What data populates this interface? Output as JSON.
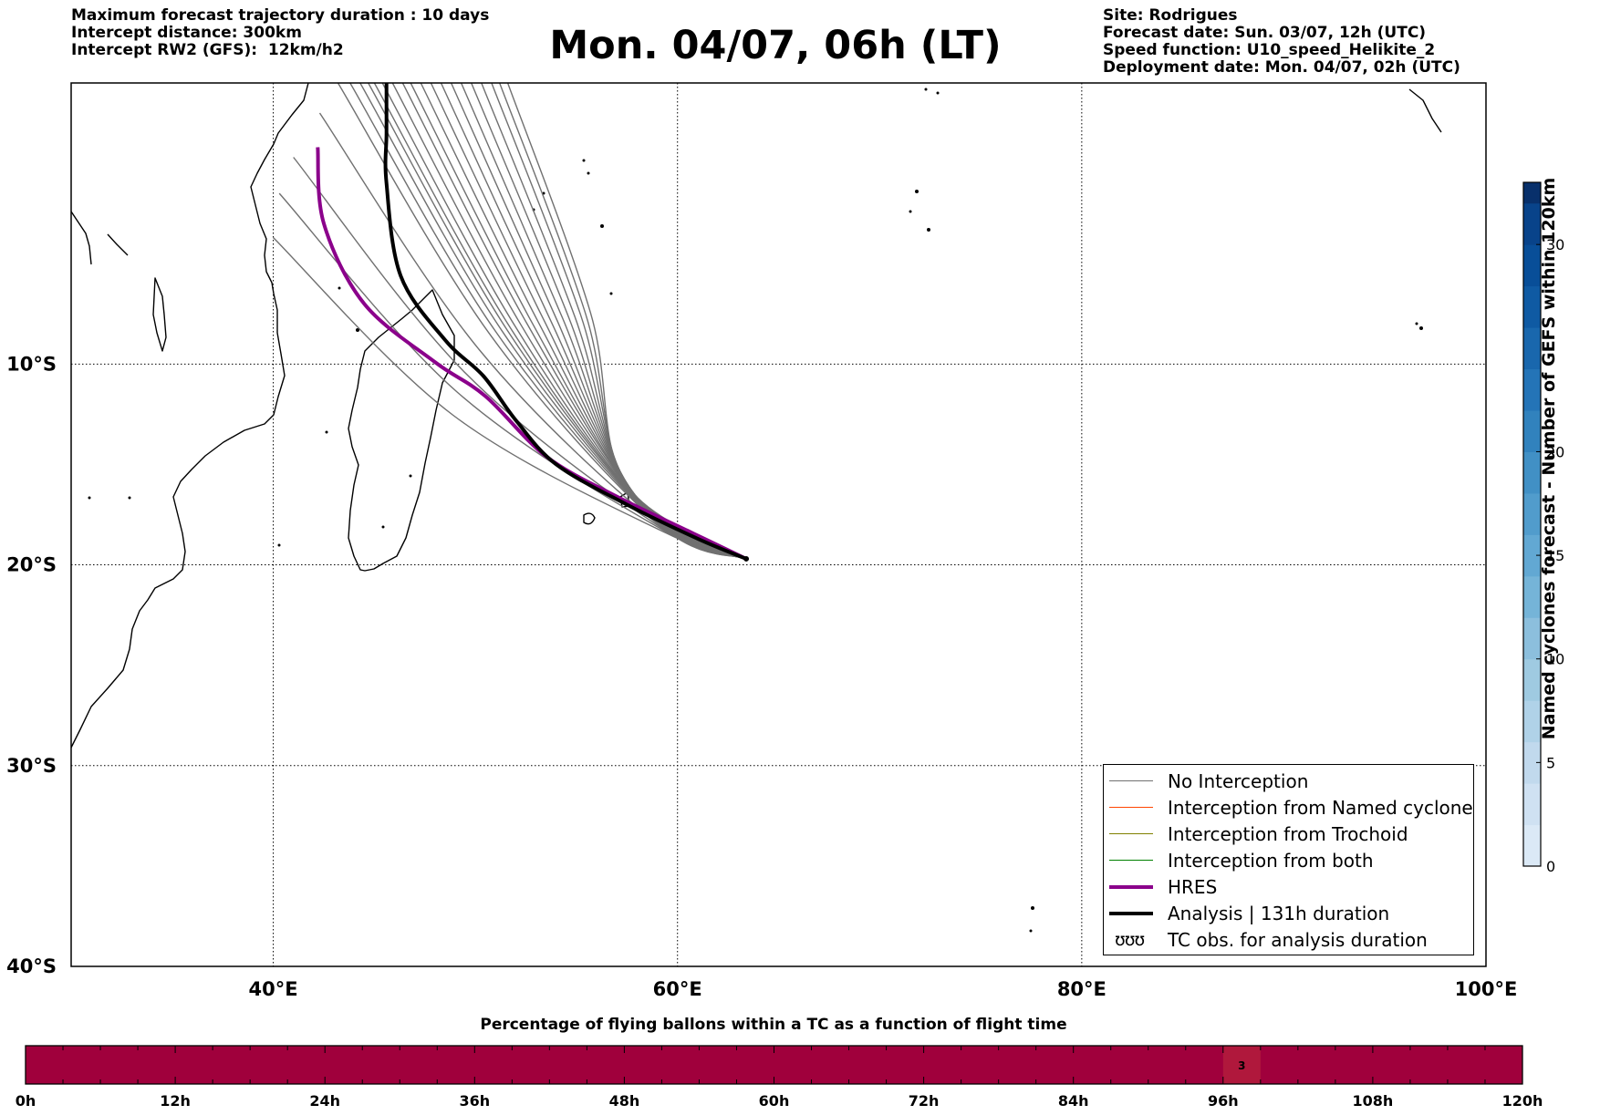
{
  "header": {
    "left_lines": [
      "Maximum forecast trajectory duration : 10 days",
      "Intercept distance: 300km",
      "Intercept RW2 (GFS):  12km/h2"
    ],
    "title": "Mon. 04/07, 06h (LT)",
    "right_lines": [
      "Site: Rodrigues",
      "Forecast date: Sun. 03/07, 12h (UTC)",
      "Speed function: U10_speed_Helikite_2",
      "Deployment date: Mon. 04/07, 02h (UTC)"
    ]
  },
  "map": {
    "lon_range": [
      30,
      100
    ],
    "lat_range": [
      -40,
      4
    ],
    "lon_ticks": [
      {
        "value": 40,
        "label": "40°E"
      },
      {
        "value": 60,
        "label": "60°E"
      },
      {
        "value": 80,
        "label": "80°E"
      },
      {
        "value": 100,
        "label": "100°E"
      }
    ],
    "lat_ticks": [
      {
        "value": -10,
        "label": "10°S"
      },
      {
        "value": -20,
        "label": "20°S"
      },
      {
        "value": -30,
        "label": "30°S"
      },
      {
        "value": -40,
        "label": "40°S"
      }
    ],
    "grid": true,
    "launch_site": {
      "lon": 63.4,
      "lat": -19.7
    },
    "colors": {
      "ensemble": "#707070",
      "hres": "#8b008b",
      "analysis": "#000000",
      "coast": "#000000"
    },
    "hres_track": [
      [
        63.4,
        -19.7
      ],
      [
        60.5,
        -18.3
      ],
      [
        57,
        -16.6
      ],
      [
        53.5,
        -14.6
      ],
      [
        50.5,
        -11.6
      ],
      [
        48,
        -9.9
      ],
      [
        44.5,
        -7
      ],
      [
        42.5,
        -3
      ],
      [
        42.2,
        0.8
      ]
    ],
    "analysis_track": [
      [
        63.4,
        -19.7
      ],
      [
        61,
        -18.7
      ],
      [
        57.5,
        -17
      ],
      [
        54,
        -15
      ],
      [
        52,
        -12.8
      ],
      [
        50.4,
        -10.6
      ],
      [
        48.5,
        -8.8
      ],
      [
        46.3,
        -5.6
      ],
      [
        45.6,
        -1
      ],
      [
        45.6,
        1.5
      ],
      [
        45.6,
        4
      ]
    ],
    "ensemble_end_points": [
      [
        40,
        -3.7
      ],
      [
        40.3,
        -1.5
      ],
      [
        41,
        0.3
      ],
      [
        42.3,
        2.5
      ],
      [
        43.2,
        4
      ],
      [
        43.8,
        4
      ],
      [
        44.3,
        4
      ],
      [
        44.7,
        4
      ],
      [
        45,
        4
      ],
      [
        45.4,
        4
      ],
      [
        45.9,
        4
      ],
      [
        46.4,
        4
      ],
      [
        46.8,
        4
      ],
      [
        47.3,
        4
      ],
      [
        47.8,
        4
      ],
      [
        48.3,
        4
      ],
      [
        48.8,
        4
      ],
      [
        49.3,
        4
      ],
      [
        49.8,
        4
      ],
      [
        50.3,
        4
      ],
      [
        50.8,
        4
      ],
      [
        51.2,
        4
      ],
      [
        51.6,
        4
      ]
    ]
  },
  "legend": {
    "items": [
      {
        "label": "No Interception",
        "color": "#707070",
        "style": "thin"
      },
      {
        "label": "Interception from Named cyclone",
        "color": "#ff4500",
        "style": "thin"
      },
      {
        "label": "Interception from Trochoid",
        "color": "#808000",
        "style": "thin"
      },
      {
        "label": "Interception from both",
        "color": "#008000",
        "style": "thin"
      },
      {
        "label": "HRES",
        "color": "#8b008b",
        "style": "thick"
      },
      {
        "label": "Analysis | 131h duration",
        "color": "#000000",
        "style": "thick"
      },
      {
        "label": "TC obs. for analysis duration",
        "color": "#000000",
        "style": "glyph",
        "glyph": "ʊʊʊ"
      }
    ]
  },
  "colorbar": {
    "title": "Named cyclones forecast - Number of GEFS within 120km",
    "range": [
      0,
      33
    ],
    "ticks": [
      0,
      5,
      10,
      15,
      20,
      30
    ],
    "levels": [
      0,
      2,
      4,
      6,
      8,
      10,
      12,
      14,
      16,
      18,
      20,
      22,
      24,
      26,
      28,
      30,
      32,
      33
    ],
    "colors": [
      "#dbe9f6",
      "#cfe1f2",
      "#c1d9ed",
      "#b0d2e8",
      "#9fcae1",
      "#8cbfdd",
      "#75b4d8",
      "#62a8d3",
      "#519ccc",
      "#4190c5",
      "#3182bd",
      "#2474b7",
      "#1967ad",
      "#0f5aa3",
      "#084e98",
      "#08438a",
      "#08306b"
    ]
  },
  "timebar": {
    "title": "Percentage of flying ballons within a TC as a function of flight time",
    "ticks": [
      "0h",
      "12h",
      "24h",
      "36h",
      "48h",
      "60h",
      "72h",
      "84h",
      "96h",
      "108h",
      "120h"
    ],
    "range_h": [
      0,
      120
    ],
    "fill_color": "#a0003c",
    "highlight": {
      "start_h": 96,
      "end_h": 99,
      "value": 3,
      "color": "#b0183c"
    }
  }
}
